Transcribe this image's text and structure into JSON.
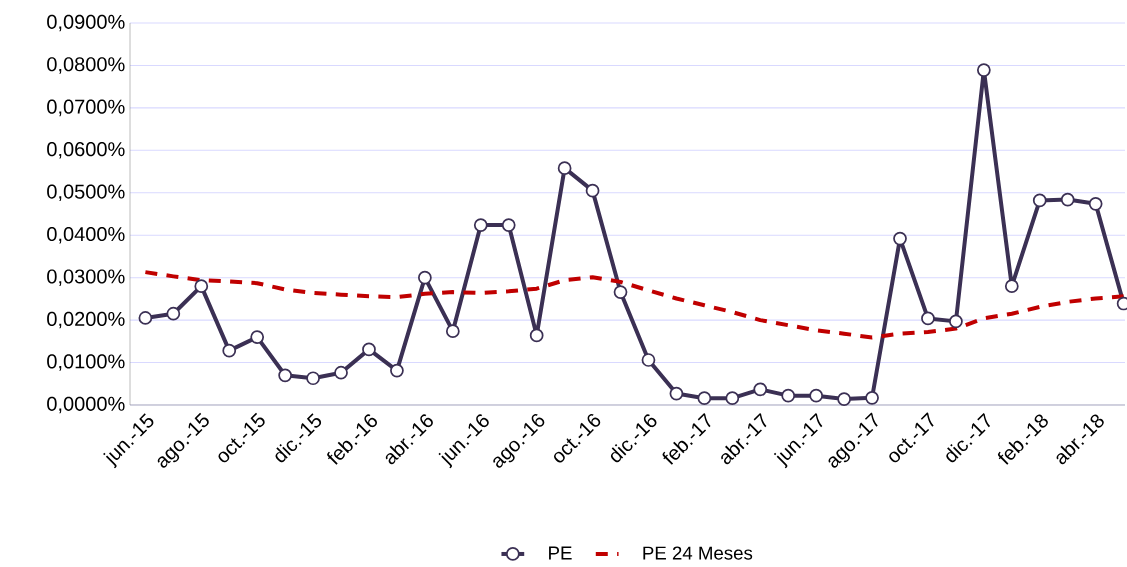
{
  "chart_data": {
    "type": "line",
    "categories": [
      "jun.-15",
      null,
      "ago.-15",
      null,
      "oct.-15",
      null,
      "dic.-15",
      null,
      "feb.-16",
      null,
      "abr.-16",
      null,
      "jun.-16",
      null,
      "ago.-16",
      null,
      "oct.-16",
      null,
      "dic.-16",
      null,
      "feb.-17",
      null,
      "abr.-17",
      null,
      "jun.-17",
      null,
      "ago.-17",
      null,
      "oct.-17",
      null,
      "dic.-17",
      null,
      "feb.-18",
      null,
      "abr.-18",
      null
    ],
    "series": [
      {
        "name": "PE",
        "color": "#3b3054",
        "marker": "circle",
        "line_style": "solid",
        "values": [
          0.0205,
          0.0215,
          0.028,
          0.0128,
          0.016,
          0.007,
          0.0063,
          0.0076,
          0.0131,
          0.0081,
          0.03,
          0.0174,
          0.0424,
          0.0424,
          0.0164,
          0.0558,
          0.0505,
          0.0266,
          0.0106,
          0.0027,
          0.0016,
          0.0016,
          0.0037,
          0.0022,
          0.0022,
          0.0014,
          0.0017,
          0.0392,
          0.0204,
          0.0197,
          0.0789,
          0.028,
          0.0482,
          0.0484,
          0.0474,
          0.0239
        ]
      },
      {
        "name": "PE 24 Meses",
        "color": "#c00000",
        "marker": "none",
        "line_style": "dashed",
        "values": [
          0.0313,
          0.0303,
          0.0294,
          0.0291,
          0.0287,
          0.0272,
          0.0264,
          0.026,
          0.0256,
          0.0254,
          0.0262,
          0.0266,
          0.0264,
          0.0268,
          0.0274,
          0.0294,
          0.0301,
          0.029,
          0.027,
          0.0251,
          0.0235,
          0.0219,
          0.02,
          0.0188,
          0.0176,
          0.0168,
          0.0159,
          0.0168,
          0.0172,
          0.018,
          0.0204,
          0.0215,
          0.0231,
          0.0243,
          0.0251,
          0.0256
        ]
      }
    ],
    "ylim": [
      0,
      0.09
    ],
    "yticks": [
      {
        "value": 0,
        "label": "0,0000%"
      },
      {
        "value": 0.01,
        "label": "0,0100%"
      },
      {
        "value": 0.02,
        "label": "0,0200%"
      },
      {
        "value": 0.03,
        "label": "0,0300%"
      },
      {
        "value": 0.04,
        "label": "0,0400%"
      },
      {
        "value": 0.05,
        "label": "0,0500%"
      },
      {
        "value": 0.06,
        "label": "0,0600%"
      },
      {
        "value": 0.07,
        "label": "0,0700%"
      },
      {
        "value": 0.08,
        "label": "0,0800%"
      },
      {
        "value": 0.09,
        "label": "0,0900%"
      }
    ],
    "grid": "y",
    "legend": "bottom"
  }
}
